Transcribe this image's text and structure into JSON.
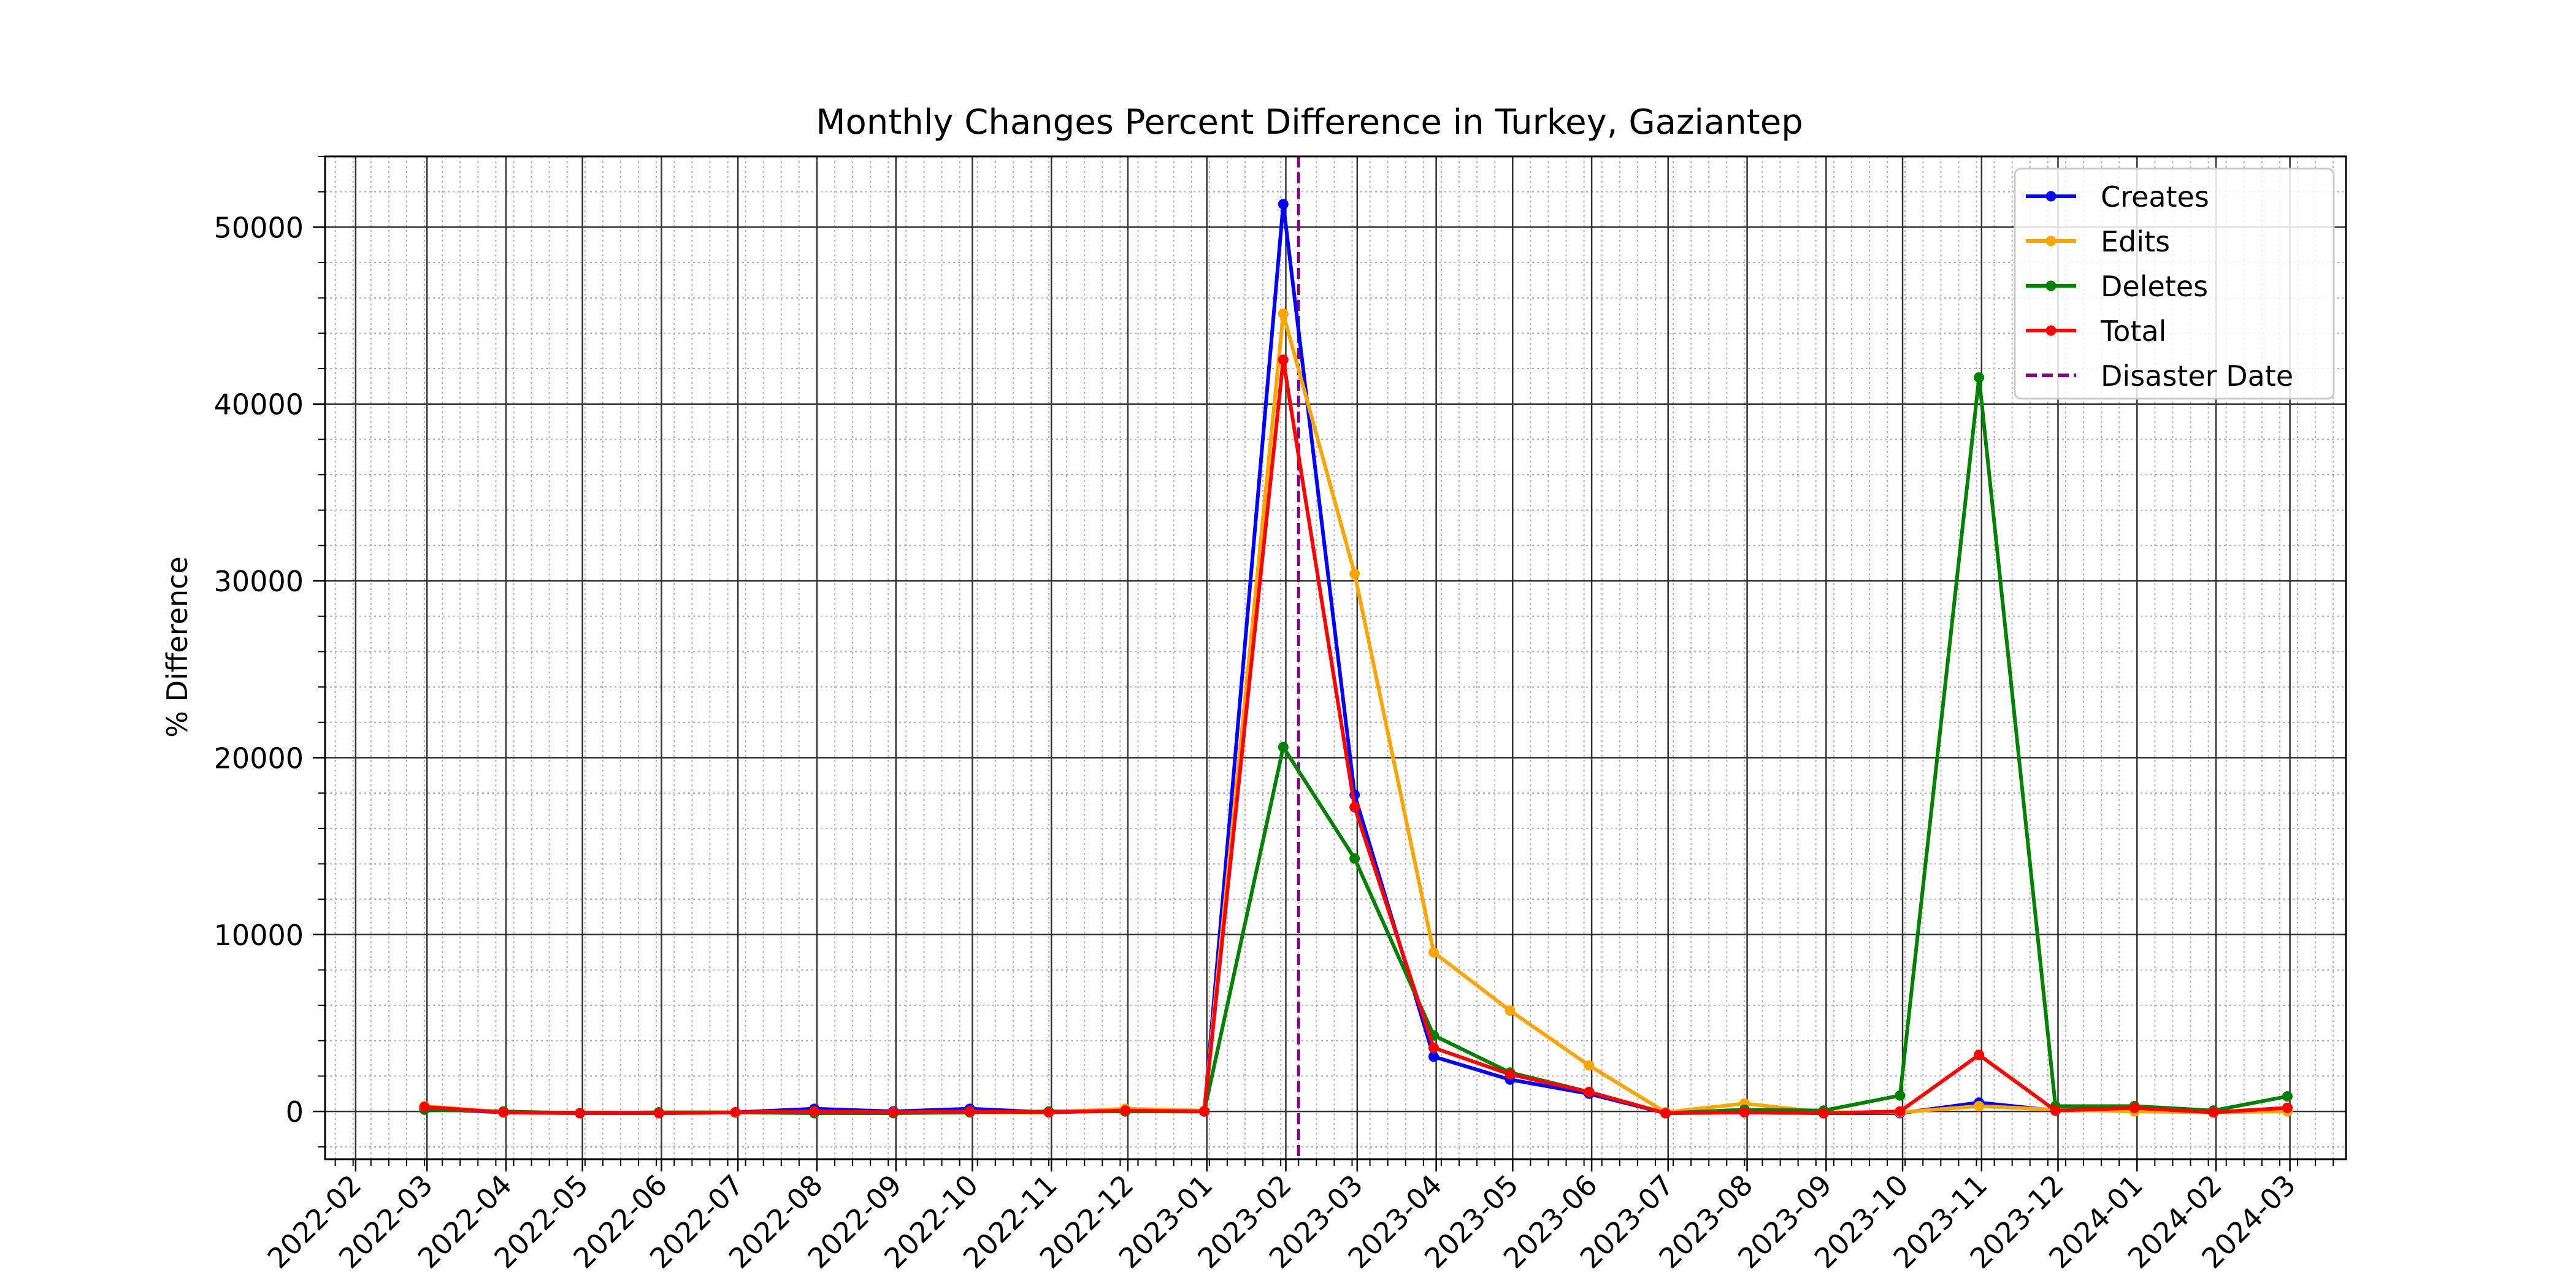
{
  "chart_data": {
    "type": "line",
    "title": "Monthly Changes Percent Difference in Turkey, Gaziantep",
    "xlabel": "",
    "ylabel": "% Difference",
    "x": [
      "2022-02-28",
      "2022-03-31",
      "2022-04-30",
      "2022-05-31",
      "2022-06-30",
      "2022-07-31",
      "2022-08-31",
      "2022-09-30",
      "2022-10-31",
      "2022-11-30",
      "2022-12-31",
      "2023-01-31",
      "2023-02-28",
      "2023-03-31",
      "2023-04-30",
      "2023-05-31",
      "2023-06-30",
      "2023-07-31",
      "2023-08-31",
      "2023-09-30",
      "2023-10-31",
      "2023-11-30",
      "2023-12-31",
      "2024-01-31",
      "2024-02-29"
    ],
    "xlim": [
      "2022-01-20",
      "2024-03-23"
    ],
    "x_tick_labels": [
      "2022-02",
      "2022-03",
      "2022-04",
      "2022-05",
      "2022-06",
      "2022-07",
      "2022-08",
      "2022-09",
      "2022-10",
      "2022-11",
      "2022-12",
      "2023-01",
      "2023-02",
      "2023-03",
      "2023-04",
      "2023-05",
      "2023-06",
      "2023-07",
      "2023-08",
      "2023-09",
      "2023-10",
      "2023-11",
      "2023-12",
      "2024-01",
      "2024-02",
      "2024-03"
    ],
    "ylim": [
      -2700,
      54000
    ],
    "y_ticks": [
      0,
      10000,
      20000,
      30000,
      40000,
      50000
    ],
    "series": [
      {
        "name": "Creates",
        "color": "#0000ff",
        "values": [
          150,
          -50,
          -100,
          -100,
          -50,
          150,
          0,
          150,
          -50,
          50,
          0,
          51300,
          17900,
          3100,
          1800,
          1000,
          -100,
          -50,
          -100,
          -100,
          500,
          50,
          200,
          -50,
          200
        ]
      },
      {
        "name": "Edits",
        "color": "#ffa500",
        "values": [
          300,
          -50,
          -100,
          -50,
          -50,
          -50,
          -50,
          -50,
          -50,
          150,
          50,
          45100,
          30400,
          9000,
          5700,
          2600,
          -50,
          450,
          -50,
          -50,
          300,
          100,
          0,
          -50,
          0
        ]
      },
      {
        "name": "Deletes",
        "color": "#008000",
        "values": [
          100,
          0,
          -100,
          -50,
          -50,
          -100,
          -100,
          -50,
          0,
          0,
          0,
          20600,
          14300,
          4300,
          2200,
          1100,
          -100,
          100,
          50,
          900,
          41500,
          300,
          300,
          50,
          850
        ]
      },
      {
        "name": "Total",
        "color": "#ff0000",
        "values": [
          250,
          -50,
          -100,
          -100,
          -50,
          0,
          -50,
          0,
          -50,
          50,
          0,
          42500,
          17200,
          3600,
          2100,
          1100,
          -100,
          -50,
          -100,
          0,
          3200,
          50,
          200,
          -50,
          200
        ]
      }
    ],
    "disaster": {
      "name": "Disaster Date",
      "date": "2023-02-06",
      "color": "#800080",
      "style": "dashed"
    },
    "legend": "top-right",
    "grid": "major solid, minor dotted"
  }
}
